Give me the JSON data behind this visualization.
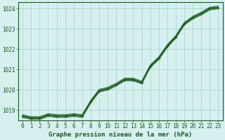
{
  "title": "Graphe pression niveau de la mer (hPa)",
  "background_color": "#d6f0f0",
  "plot_bg_color": "#d6f0f0",
  "grid_color": "#b0d8d0",
  "line_color": "#1a5c1a",
  "xlim": [
    -0.5,
    23.5
  ],
  "ylim": [
    1018.5,
    1024.3
  ],
  "yticks": [
    1019,
    1020,
    1021,
    1022,
    1023,
    1024
  ],
  "xticks": [
    0,
    1,
    2,
    3,
    4,
    5,
    6,
    7,
    8,
    9,
    10,
    11,
    12,
    13,
    14,
    15,
    16,
    17,
    18,
    19,
    20,
    21,
    22,
    23
  ],
  "x": [
    0,
    1,
    2,
    3,
    4,
    5,
    6,
    7,
    8,
    9,
    10,
    11,
    12,
    13,
    14,
    15,
    16,
    17,
    18,
    19,
    20,
    21,
    22,
    23
  ],
  "series_main": [
    1018.7,
    1018.6,
    1018.6,
    1018.75,
    1018.7,
    1018.7,
    1018.75,
    1018.7,
    1019.4,
    1019.95,
    1020.05,
    1020.25,
    1020.5,
    1020.5,
    1020.35,
    1021.15,
    1021.55,
    1022.15,
    1022.6,
    1023.25,
    1023.55,
    1023.75,
    1024.0,
    1024.05
  ],
  "series_offsets": [
    -0.07,
    -0.035,
    0.0,
    0.035,
    0.07
  ],
  "title_fontsize": 6.5,
  "tick_fontsize": 5.5,
  "xlabel_fontsize": 6.5
}
